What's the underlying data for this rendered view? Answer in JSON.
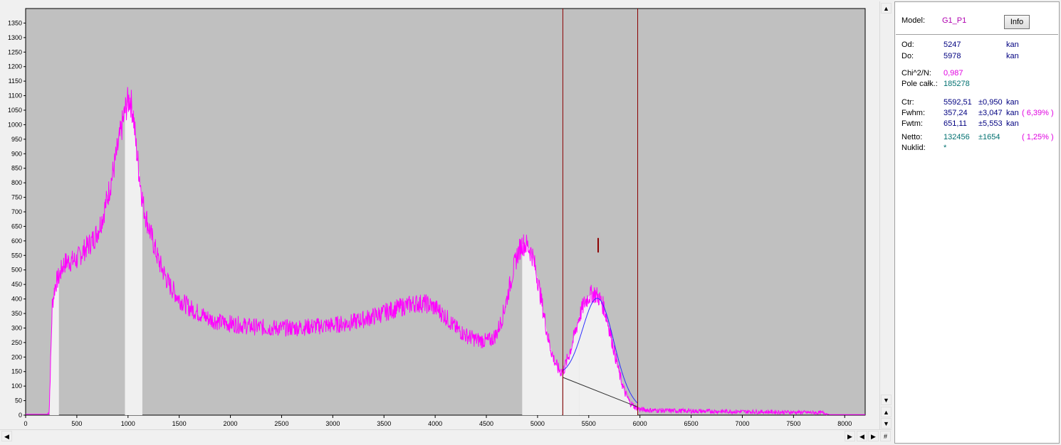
{
  "colors": {
    "background": "#c0c0c0",
    "spectrum": "#ff00ff",
    "highlight": "#f0f0f0",
    "marker": "#8b0000",
    "fit": "#3030ff",
    "label_purple": "#b000b0",
    "label_blue": "#000080",
    "label_teal": "#007070",
    "label_magenta": "#e000e0"
  },
  "chart_data": {
    "type": "line",
    "xlim": [
      0,
      8200
    ],
    "ylim": [
      0,
      1400
    ],
    "x_ticks": [
      0,
      500,
      1000,
      1500,
      2000,
      2500,
      3000,
      3500,
      4000,
      4500,
      5000,
      5500,
      6000,
      6500,
      7000,
      7500,
      8000
    ],
    "y_ticks": [
      0,
      50,
      100,
      150,
      200,
      250,
      300,
      350,
      400,
      450,
      500,
      550,
      600,
      650,
      700,
      750,
      800,
      850,
      900,
      950,
      1000,
      1050,
      1100,
      1150,
      1200,
      1250,
      1300,
      1350
    ],
    "grid": false,
    "series": [
      {
        "x": [
          0,
          210,
          230,
          260,
          290,
          330,
          370,
          410,
          450,
          500,
          550,
          600,
          650,
          700,
          750,
          800,
          850,
          900,
          950,
          980,
          1000,
          1020,
          1050,
          1080,
          1120,
          1150,
          1200,
          1250,
          1300,
          1400,
          1500,
          1600,
          1700,
          1800,
          1900,
          2000,
          2200,
          2400,
          2600,
          2800,
          3000,
          3200,
          3400,
          3600,
          3800,
          3900,
          4000,
          4100,
          4200,
          4300,
          4400,
          4500,
          4550,
          4600,
          4650,
          4700,
          4750,
          4800,
          4850,
          4900,
          4950,
          5000,
          5050,
          5100,
          5150,
          5200,
          5230,
          5260,
          5300,
          5350,
          5400,
          5450,
          5500,
          5550,
          5600,
          5650,
          5700,
          5750,
          5800,
          5850,
          5900,
          5950,
          6000,
          6100,
          6200,
          6500,
          7000,
          7500,
          7800,
          7850,
          8200
        ],
        "y": [
          3,
          3,
          10,
          380,
          450,
          480,
          520,
          530,
          530,
          535,
          560,
          580,
          600,
          630,
          680,
          750,
          830,
          920,
          1010,
          1060,
          1080,
          1090,
          1040,
          920,
          800,
          720,
          650,
          590,
          530,
          450,
          400,
          370,
          350,
          330,
          320,
          315,
          305,
          300,
          300,
          305,
          310,
          320,
          340,
          365,
          385,
          385,
          370,
          340,
          300,
          275,
          260,
          255,
          260,
          280,
          330,
          400,
          480,
          550,
          590,
          585,
          550,
          470,
          370,
          270,
          200,
          160,
          150,
          160,
          200,
          260,
          330,
          380,
          410,
          420,
          405,
          370,
          300,
          220,
          140,
          80,
          45,
          28,
          20,
          17,
          16,
          14,
          12,
          10,
          8,
          2,
          2
        ]
      }
    ],
    "highlights": [
      [
        235,
        325
      ],
      [
        970,
        1140
      ],
      [
        4850,
        5240
      ],
      [
        5250,
        5410
      ],
      [
        5410,
        5980
      ]
    ],
    "markers": [
      5247,
      5978
    ],
    "peak_marker": {
      "x": 5592,
      "y_from": 560,
      "y_to": 610
    },
    "background_line": [
      [
        5247,
        130
      ],
      [
        5978,
        28
      ]
    ],
    "fit_curve": {
      "center": 5592.51,
      "fwhm": 357.24,
      "amplitude": 320
    }
  },
  "panel": {
    "model_label": "Model:",
    "model_value": "G1_P1",
    "info_button": "Info",
    "od_label": "Od:",
    "od_value": "5247",
    "od_unit": "kan",
    "do_label": "Do:",
    "do_value": "5978",
    "do_unit": "kan",
    "chi_label": "Chi^2/N:",
    "chi_value": "0,987",
    "pole_label": "Pole całk.:",
    "pole_value": "185278",
    "ctr_label": "Ctr:",
    "ctr_value": "5592,51",
    "ctr_err": "±0,950",
    "ctr_unit": "kan",
    "fwhm_label": "Fwhm:",
    "fwhm_value": "357,24",
    "fwhm_err": "±3,047",
    "fwhm_unit": "kan",
    "fwhm_pct": "( 6,39% )",
    "fwtm_label": "Fwtm:",
    "fwtm_value": "651,11",
    "fwtm_err": "±5,553",
    "fwtm_unit": "kan",
    "netto_label": "Netto:",
    "netto_value": "132456",
    "netto_err": "±1654",
    "netto_pct": "( 1,25% )",
    "nuklid_label": "Nuklid:",
    "nuklid_value": "*"
  },
  "scrollbars": {
    "up": "▲",
    "down": "▼",
    "left": "◀",
    "right": "▶",
    "corner": "#"
  }
}
